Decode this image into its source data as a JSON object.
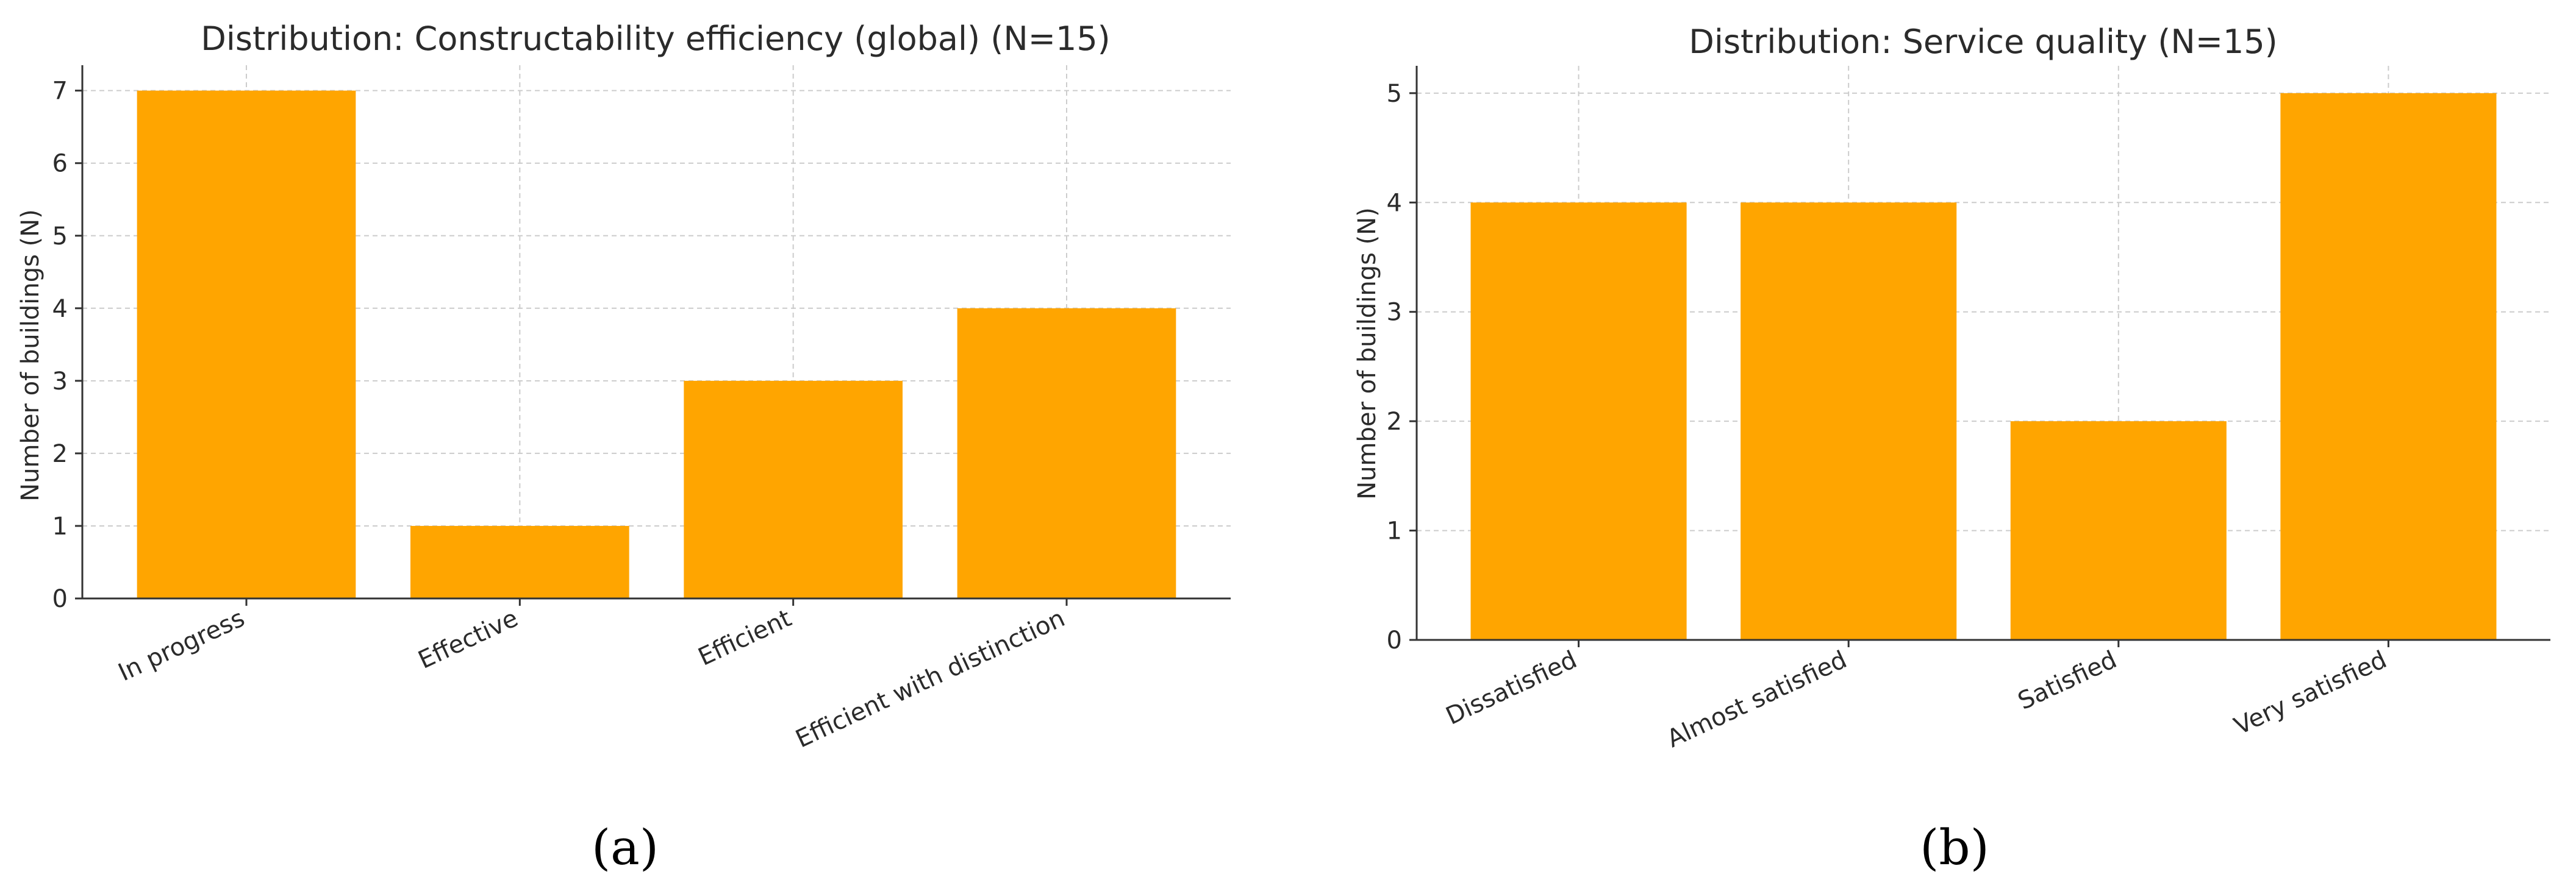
{
  "chart_data": [
    {
      "type": "bar",
      "title": "Distribution: Constructability efficiency (global) (N=15)",
      "xlabel": "",
      "ylabel": "Number of buildings (N)",
      "categories": [
        "In progress",
        "Effective",
        "Efficient",
        "Efficient with distinction"
      ],
      "values": [
        7,
        1,
        3,
        4
      ],
      "ylim": [
        0,
        7.35
      ],
      "yticks": [
        0,
        1,
        2,
        3,
        4,
        5,
        6,
        7
      ],
      "grid": true,
      "bar_color": "#FFA500",
      "caption": "(a)"
    },
    {
      "type": "bar",
      "title": "Distribution: Service quality (N=15)",
      "xlabel": "",
      "ylabel": "Number of buildings (N)",
      "categories": [
        "Dissatisfied",
        "Almost satisfied",
        "Satisfied",
        "Very satisfied"
      ],
      "values": [
        4,
        4,
        2,
        5
      ],
      "ylim": [
        0,
        5.25
      ],
      "yticks": [
        0,
        1,
        2,
        3,
        4,
        5
      ],
      "grid": true,
      "bar_color": "#FFA500",
      "caption": "(b)"
    }
  ]
}
